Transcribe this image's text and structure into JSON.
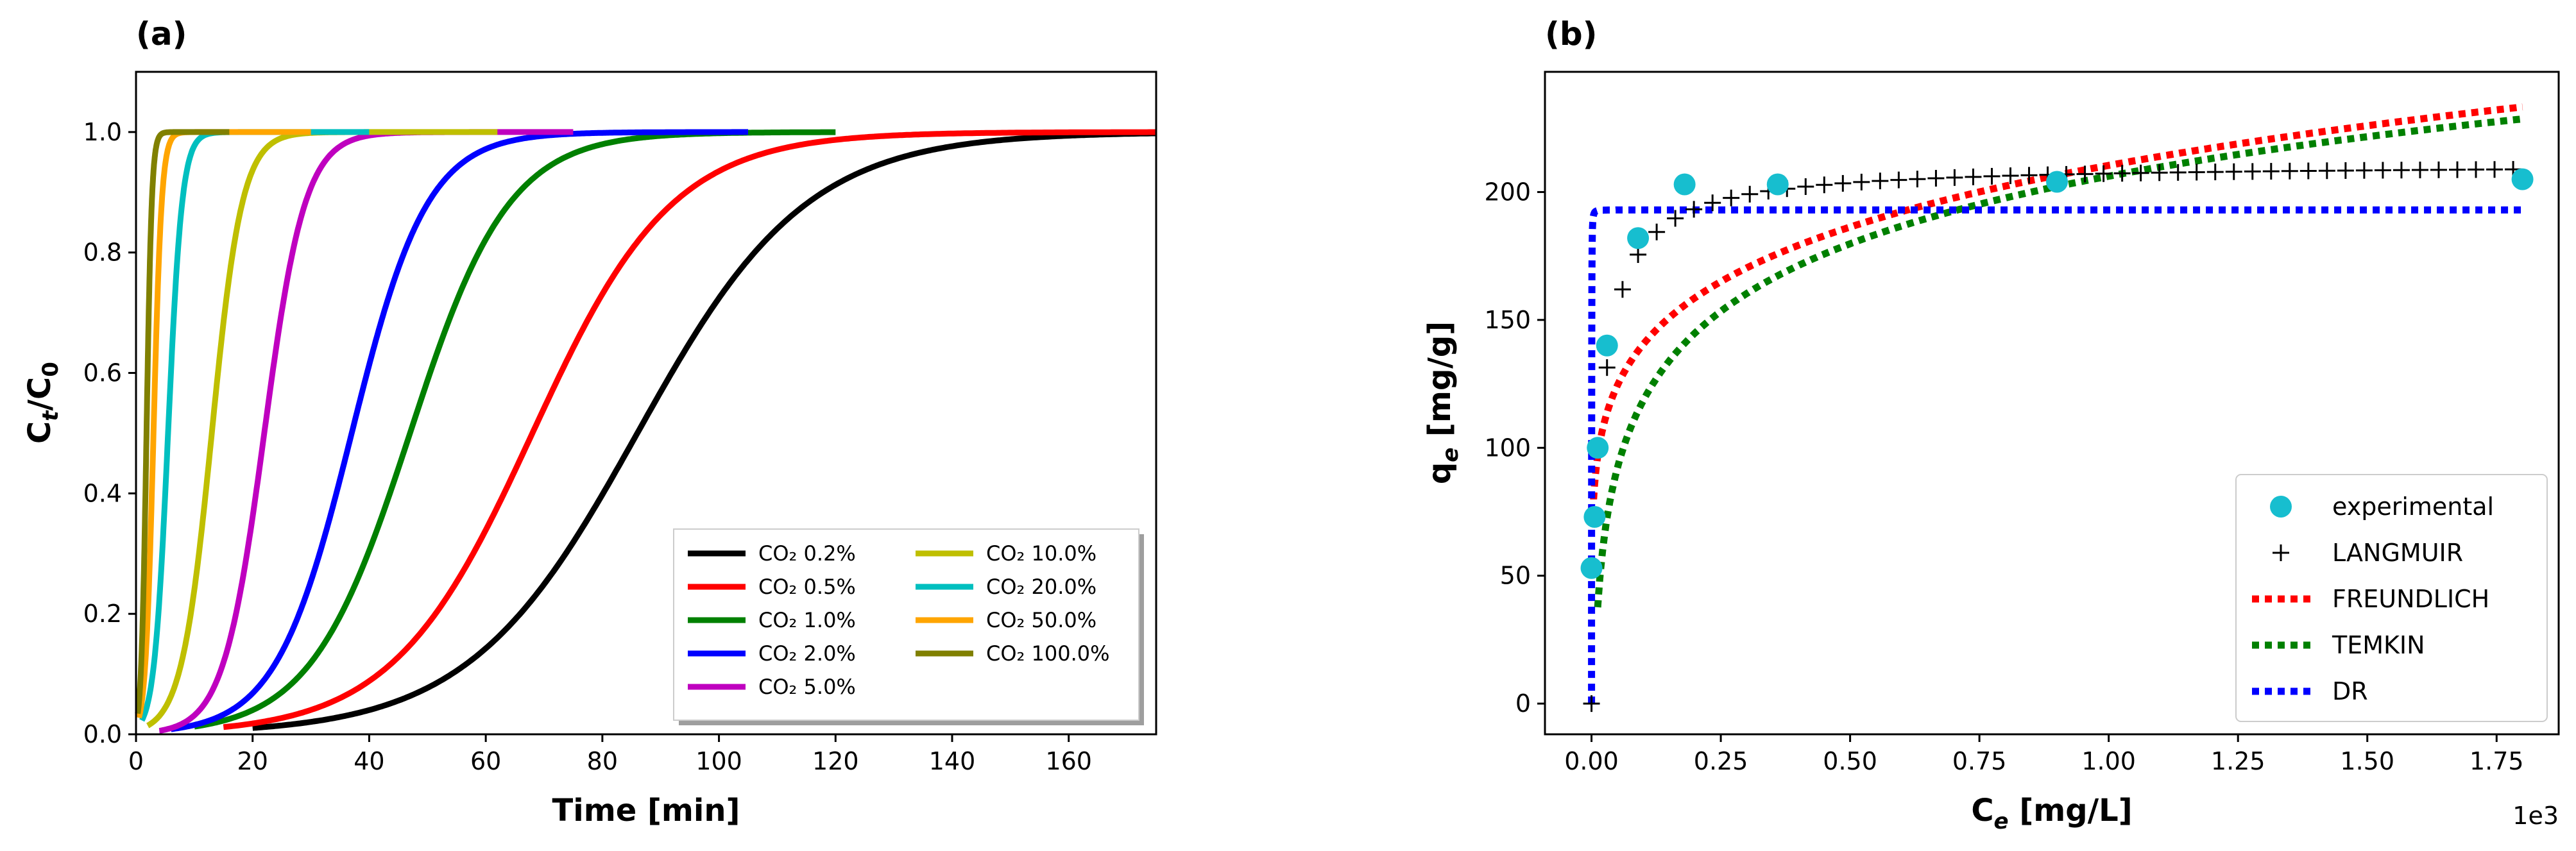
{
  "chart_data": [
    {
      "panel": "(a)",
      "type": "line",
      "xlabel": "Time [min]",
      "ylabel": "Ct/C0",
      "ylabel_main": "C",
      "ylabel_sub1": "t",
      "ylabel_mid": "/C",
      "ylabel_sub2": "0",
      "xlim": [
        0,
        175
      ],
      "ylim": [
        0,
        1.1
      ],
      "xticks": [
        0,
        20,
        40,
        60,
        80,
        100,
        120,
        140,
        160
      ],
      "xtick_labels": [
        "0",
        "20",
        "40",
        "60",
        "80",
        "100",
        "120",
        "140",
        "160"
      ],
      "yticks": [
        0,
        0.2,
        0.4,
        0.6,
        0.8,
        1.0
      ],
      "ytick_labels": [
        "0.0",
        "0.2",
        "0.4",
        "0.6",
        "0.8",
        "1.0"
      ],
      "grid": false,
      "legend_position": "lower-right",
      "series": [
        {
          "name": "CO₂ 0.2%",
          "color": "#000000",
          "t_half": 86,
          "width": 14.5,
          "t_start": 20,
          "t_end": 175
        },
        {
          "name": "CO₂ 0.5%",
          "color": "#ff0000",
          "t_half": 68,
          "width": 12.0,
          "t_start": 15,
          "t_end": 175
        },
        {
          "name": "CO₂ 1.0%",
          "color": "#008000",
          "t_half": 47,
          "width": 8.5,
          "t_start": 10,
          "t_end": 120
        },
        {
          "name": "CO₂ 2.0%",
          "color": "#0000ff",
          "t_half": 37,
          "width": 6.5,
          "t_start": 6,
          "t_end": 105
        },
        {
          "name": "CO₂ 5.0%",
          "color": "#bf00bf",
          "t_half": 22,
          "width": 3.5,
          "t_start": 4,
          "t_end": 75
        },
        {
          "name": "CO₂ 10.0%",
          "color": "#bfbf00",
          "t_half": 13,
          "width": 2.6,
          "t_start": 2,
          "t_end": 62
        },
        {
          "name": "CO₂ 20.0%",
          "color": "#00bfbf",
          "t_half": 5.5,
          "width": 1.2,
          "t_start": 1,
          "t_end": 40
        },
        {
          "name": "CO₂ 50.0%",
          "color": "#ffa500",
          "t_half": 3.0,
          "width": 0.7,
          "t_start": 0.5,
          "t_end": 30
        },
        {
          "name": "CO₂ 100.0%",
          "color": "#808000",
          "t_half": 1.8,
          "width": 0.45,
          "t_start": 0.3,
          "t_end": 16
        }
      ]
    },
    {
      "panel": "(b)",
      "type": "scatter",
      "xlabel": "Ce [mg/L]",
      "xlabel_main": "C",
      "xlabel_sub": "e",
      "xlabel_rest": " [mg/L]",
      "ylabel": "qe [mg/g]",
      "ylabel_main": "q",
      "ylabel_sub": "e",
      "ylabel_rest": " [mg/g]",
      "x_multiplier": "1e3",
      "xlim": [
        -0.09,
        1.87
      ],
      "ylim": [
        -12,
        247
      ],
      "xticks": [
        0.0,
        0.25,
        0.5,
        0.75,
        1.0,
        1.25,
        1.5,
        1.75
      ],
      "xtick_labels": [
        "0.00",
        "0.25",
        "0.50",
        "0.75",
        "1.00",
        "1.25",
        "1.50",
        "1.75"
      ],
      "yticks": [
        0,
        50,
        100,
        150,
        200
      ],
      "ytick_labels": [
        "0",
        "50",
        "100",
        "150",
        "200"
      ],
      "grid": false,
      "legend_position": "lower-right",
      "experimental": {
        "name": "experimental",
        "color": "#17becf",
        "x": [
          0.0,
          0.006,
          0.012,
          0.03,
          0.09,
          0.18,
          0.36,
          0.9,
          1.8
        ],
        "y": [
          53,
          73,
          100,
          140,
          182,
          203,
          203,
          204,
          205
        ]
      },
      "models": [
        {
          "name": "LANGMUIR",
          "color": "#000000",
          "style": "plus",
          "qmax": 211,
          "K": 0.055
        },
        {
          "name": "FREUNDLICH",
          "color": "#ff0000",
          "style": "dotted",
          "Kf": 62.6,
          "n": 0.1755
        },
        {
          "name": "TEMKIN",
          "color": "#008000",
          "style": "dotted",
          "A": 38.1,
          "B": 0.224
        },
        {
          "name": "DR",
          "color": "#0000ff",
          "style": "dotted",
          "qm": 193,
          "k": 0.0017
        }
      ]
    }
  ]
}
